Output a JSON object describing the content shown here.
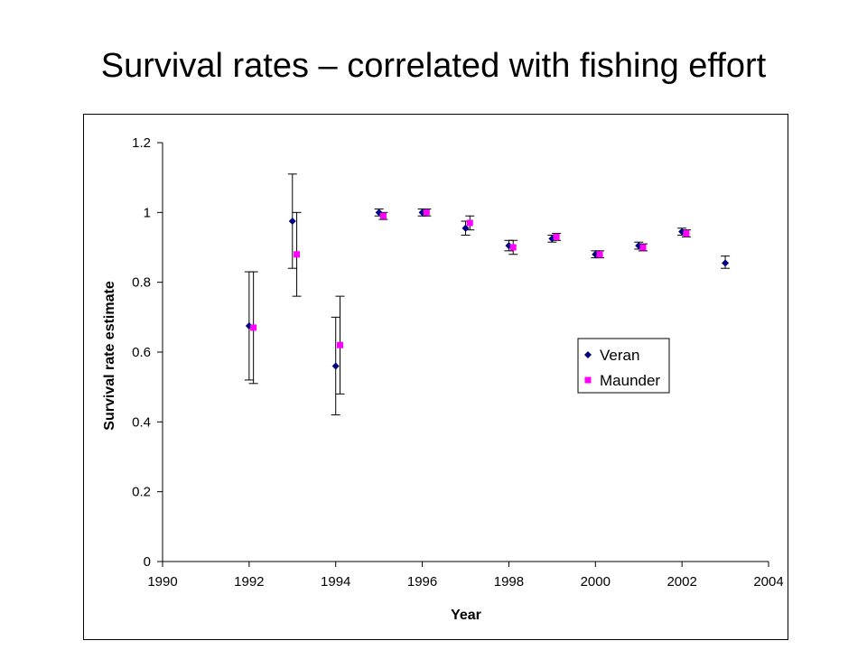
{
  "slide": {
    "title": "Survival rates – correlated with fishing effort"
  },
  "chart_data": {
    "type": "scatter",
    "title": "",
    "xlabel": "Year",
    "ylabel": "Survival rate estimate",
    "xlim": [
      1990,
      2004
    ],
    "ylim": [
      0,
      1.2
    ],
    "x_ticks": [
      1990,
      1992,
      1994,
      1996,
      1998,
      2000,
      2002,
      2004
    ],
    "y_ticks": [
      0,
      0.2,
      0.4,
      0.6,
      0.8,
      1,
      1.2
    ],
    "y_tick_labels": [
      "0",
      "0.2",
      "0.4",
      "0.6",
      "0.8",
      "1",
      "1.2"
    ],
    "grid": false,
    "legend_position": "right",
    "series": [
      {
        "name": "Veran",
        "marker": "diamond",
        "color": "#000080",
        "points": [
          {
            "x": 1992,
            "y": 0.675,
            "low": 0.52,
            "high": 0.83
          },
          {
            "x": 1993,
            "y": 0.975,
            "low": 0.84,
            "high": 1.11
          },
          {
            "x": 1994,
            "y": 0.56,
            "low": 0.42,
            "high": 0.7
          },
          {
            "x": 1995,
            "y": 1.0,
            "low": 0.99,
            "high": 1.01
          },
          {
            "x": 1996,
            "y": 1.0,
            "low": 0.99,
            "high": 1.01
          },
          {
            "x": 1997,
            "y": 0.955,
            "low": 0.935,
            "high": 0.975
          },
          {
            "x": 1998,
            "y": 0.905,
            "low": 0.89,
            "high": 0.92
          },
          {
            "x": 1999,
            "y": 0.925,
            "low": 0.915,
            "high": 0.935
          },
          {
            "x": 2000,
            "y": 0.88,
            "low": 0.87,
            "high": 0.89
          },
          {
            "x": 2001,
            "y": 0.905,
            "low": 0.895,
            "high": 0.915
          },
          {
            "x": 2002,
            "y": 0.945,
            "low": 0.935,
            "high": 0.955
          },
          {
            "x": 2003,
            "y": 0.855,
            "low": 0.84,
            "high": 0.875
          }
        ]
      },
      {
        "name": "Maunder",
        "marker": "square",
        "color": "#ff00ff",
        "points": [
          {
            "x": 1992.1,
            "y": 0.67,
            "low": 0.51,
            "high": 0.83
          },
          {
            "x": 1993.1,
            "y": 0.88,
            "low": 0.76,
            "high": 1.0
          },
          {
            "x": 1994.1,
            "y": 0.62,
            "low": 0.48,
            "high": 0.76
          },
          {
            "x": 1995.1,
            "y": 0.99,
            "low": 0.98,
            "high": 1.0
          },
          {
            "x": 1996.1,
            "y": 1.0,
            "low": 0.99,
            "high": 1.01
          },
          {
            "x": 1997.1,
            "y": 0.97,
            "low": 0.95,
            "high": 0.99
          },
          {
            "x": 1998.1,
            "y": 0.9,
            "low": 0.88,
            "high": 0.92
          },
          {
            "x": 1999.1,
            "y": 0.93,
            "low": 0.92,
            "high": 0.94
          },
          {
            "x": 2000.1,
            "y": 0.88,
            "low": 0.87,
            "high": 0.89
          },
          {
            "x": 2001.1,
            "y": 0.9,
            "low": 0.89,
            "high": 0.91
          },
          {
            "x": 2002.1,
            "y": 0.94,
            "low": 0.93,
            "high": 0.95
          }
        ]
      }
    ]
  }
}
